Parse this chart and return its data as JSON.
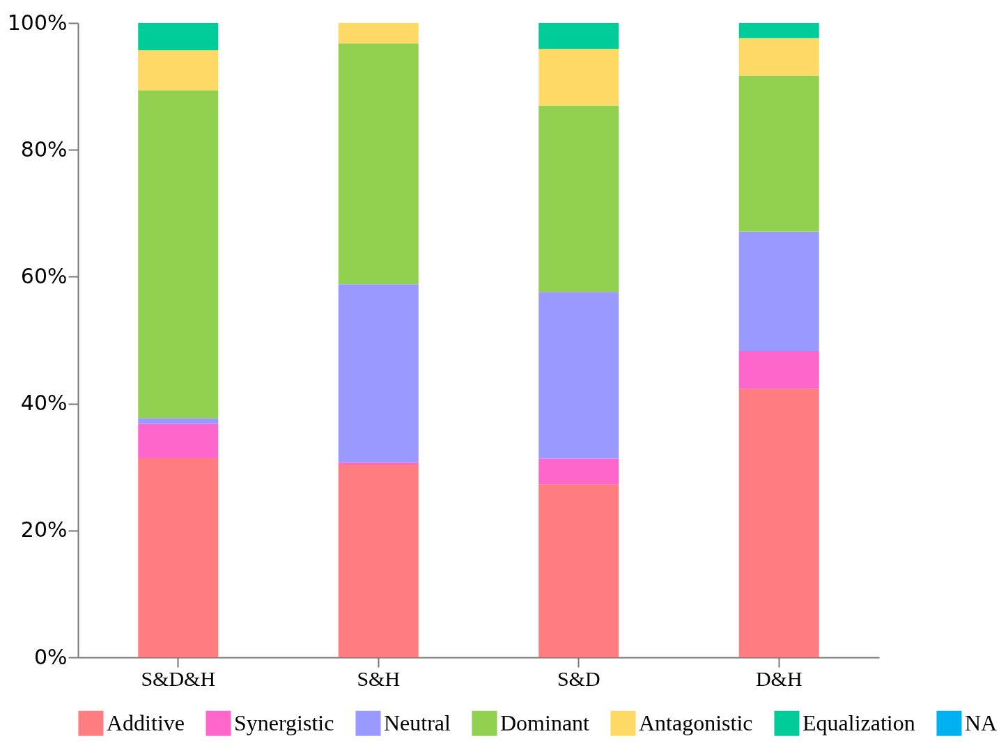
{
  "chart_data": {
    "type": "bar",
    "stacked": true,
    "categories": [
      "S&D&H",
      "S&H",
      "S&D",
      "D&H"
    ],
    "series": [
      {
        "name": "Additive",
        "color": "#ff7c80",
        "values": [
          31.4,
          30.4,
          27.3,
          42.4
        ]
      },
      {
        "name": "Synergistic",
        "color": "#ff66cc",
        "values": [
          5.4,
          0.3,
          4.0,
          5.9
        ]
      },
      {
        "name": "Neutral",
        "color": "#9999ff",
        "values": [
          0.9,
          28.1,
          26.3,
          18.8
        ]
      },
      {
        "name": "Dominant",
        "color": "#92d050",
        "values": [
          51.7,
          38.0,
          29.4,
          24.6
        ]
      },
      {
        "name": "Antagonistic",
        "color": "#ffd966",
        "values": [
          6.3,
          3.2,
          8.9,
          5.9
        ]
      },
      {
        "name": "Equalization",
        "color": "#00cc99",
        "values": [
          4.3,
          0,
          4.1,
          2.4
        ]
      },
      {
        "name": "NA",
        "color": "#00b0f0",
        "values": [
          0,
          0,
          0,
          0
        ]
      }
    ],
    "ylim": [
      0,
      100
    ],
    "yticks": [
      {
        "value": 0,
        "label": "0%"
      },
      {
        "value": 20,
        "label": "20%"
      },
      {
        "value": 40,
        "label": "40%"
      },
      {
        "value": 60,
        "label": "60%"
      },
      {
        "value": 80,
        "label": "80%"
      },
      {
        "value": 100,
        "label": "100%"
      }
    ],
    "grid": false,
    "legend": "bottom"
  }
}
